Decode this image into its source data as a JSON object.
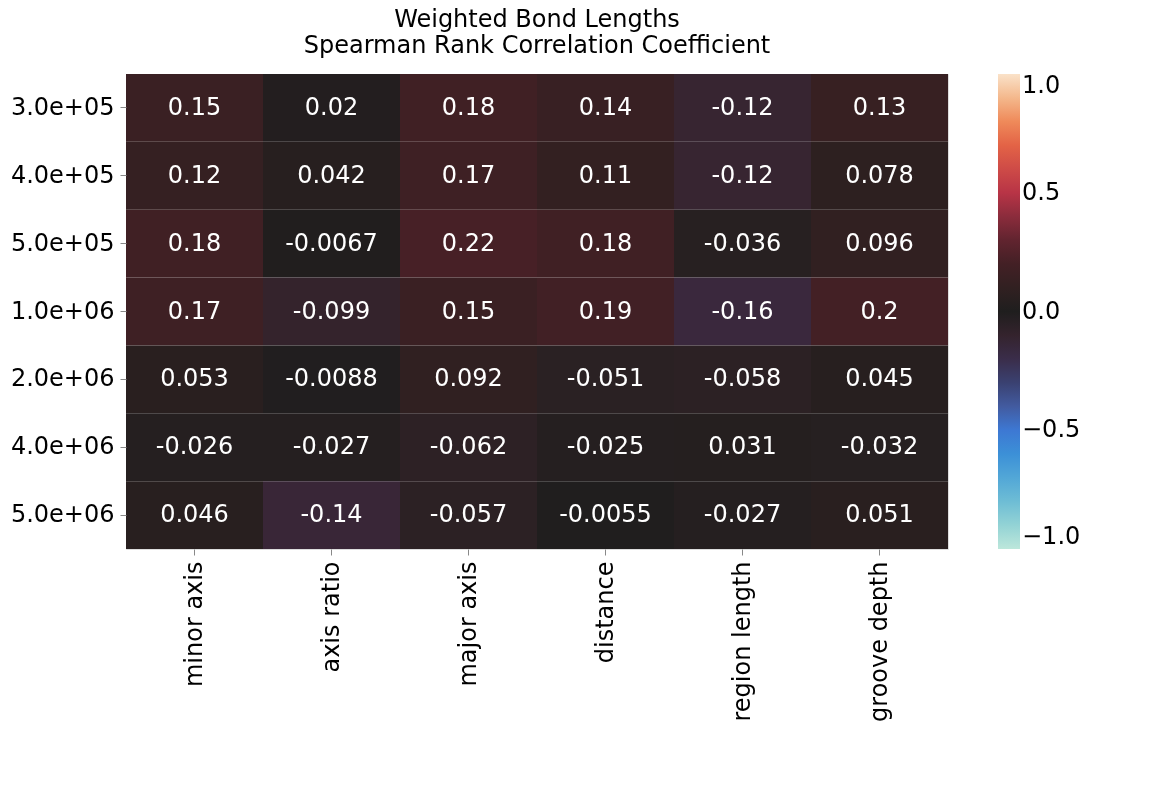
{
  "chart_data": {
    "type": "heatmap",
    "title": "Weighted Bond Lengths\nSpearman Rank Correlation Coefficient",
    "categories": [
      "minor axis",
      "axis ratio",
      "major axis",
      "distance",
      "region length",
      "groove depth"
    ],
    "y_categories": [
      "3.0e+05",
      "4.0e+05",
      "5.0e+05",
      "1.0e+06",
      "2.0e+06",
      "4.0e+06",
      "5.0e+06"
    ],
    "cells": [
      [
        0.15,
        0.02,
        0.18,
        0.14,
        -0.12,
        0.13
      ],
      [
        0.12,
        0.042,
        0.17,
        0.11,
        -0.12,
        0.078
      ],
      [
        0.18,
        -0.0067,
        0.22,
        0.18,
        -0.036,
        0.096
      ],
      [
        0.17,
        -0.099,
        0.15,
        0.19,
        -0.16,
        0.2
      ],
      [
        0.053,
        -0.0088,
        0.092,
        -0.051,
        -0.058,
        0.045
      ],
      [
        -0.026,
        -0.027,
        -0.062,
        -0.025,
        0.031,
        -0.032
      ],
      [
        0.046,
        -0.14,
        -0.057,
        -0.0055,
        -0.027,
        0.051
      ]
    ],
    "data_labels": true,
    "clim": [
      -1.0,
      1.0
    ],
    "cticks": [
      {
        "value": -1.0,
        "label": "−1.0"
      },
      {
        "value": -0.5,
        "label": "−0.5"
      },
      {
        "value": 0.0,
        "label": "0.0"
      },
      {
        "value": 0.5,
        "label": "0.5"
      },
      {
        "value": 1.0,
        "label": "1.0"
      }
    ],
    "colors": [
      "#bde7db",
      "#62b1d6",
      "#3d78d3",
      "#33355a",
      "#1f1e1e",
      "#4c2028",
      "#b83446",
      "#ec7046",
      "#fae2c9"
    ]
  }
}
